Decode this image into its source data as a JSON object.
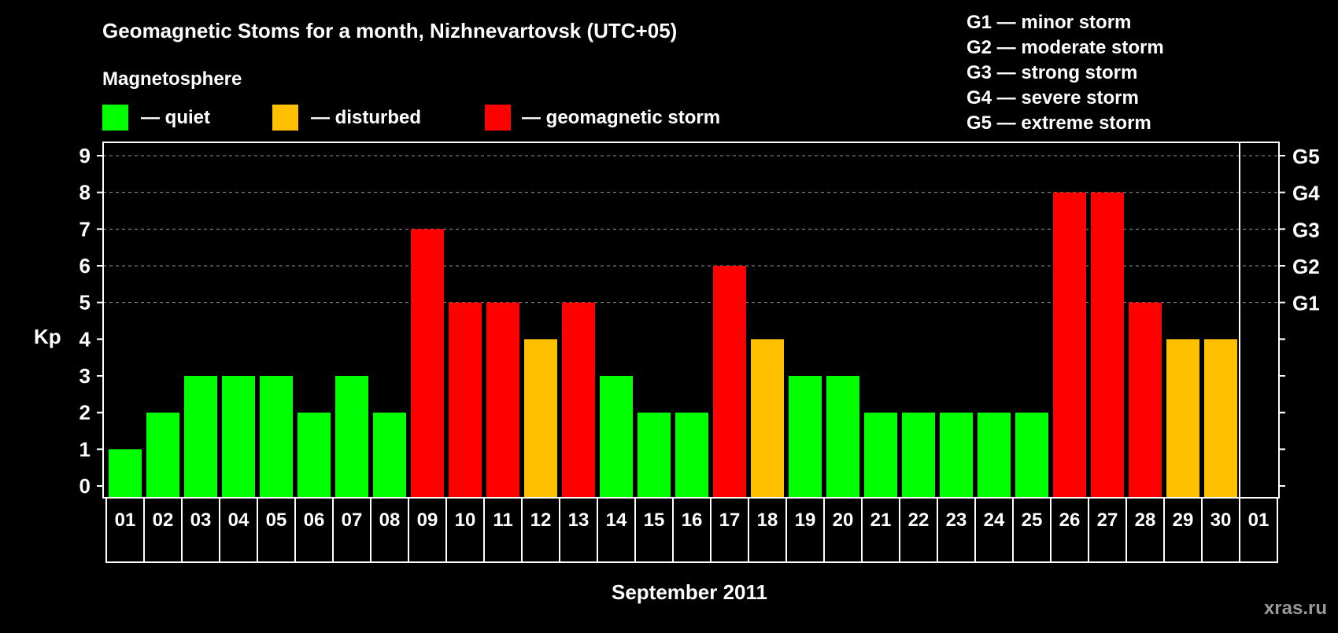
{
  "chart_data": {
    "type": "bar",
    "title": "Geomagnetic Stoms for a month, Nizhnevartovsk (UTC+05)",
    "xlabel": "September 2011",
    "ylabel": "Kp",
    "ylim": [
      0,
      9
    ],
    "yticks": [
      "0",
      "1",
      "2",
      "3",
      "4",
      "5",
      "6",
      "7",
      "8",
      "9"
    ],
    "right_ticks": [
      {
        "kp": 5,
        "label": "G1"
      },
      {
        "kp": 6,
        "label": "G2"
      },
      {
        "kp": 7,
        "label": "G3"
      },
      {
        "kp": 8,
        "label": "G4"
      },
      {
        "kp": 9,
        "label": "G5"
      }
    ],
    "grid": true,
    "categories": [
      "01",
      "02",
      "03",
      "04",
      "05",
      "06",
      "07",
      "08",
      "09",
      "10",
      "11",
      "12",
      "13",
      "14",
      "15",
      "16",
      "17",
      "18",
      "19",
      "20",
      "21",
      "22",
      "23",
      "24",
      "25",
      "26",
      "27",
      "28",
      "29",
      "30",
      "01"
    ],
    "values": [
      1,
      2,
      3,
      3,
      3,
      2,
      3,
      2,
      7,
      5,
      5,
      4,
      5,
      3,
      2,
      2,
      6,
      4,
      3,
      3,
      2,
      2,
      2,
      2,
      2,
      8,
      8,
      5,
      4,
      4,
      null
    ],
    "legend_title": "Magnetosphere",
    "legend": [
      {
        "label": "— quiet",
        "color": "#00ff00"
      },
      {
        "label": "— disturbed",
        "color": "#ffc000"
      },
      {
        "label": "— geomagnetic storm",
        "color": "#ff0000"
      }
    ],
    "scale_legend": [
      "G1 — minor storm",
      "G2 — moderate storm",
      "G3 — strong storm",
      "G4 — severe storm",
      "G5 — extreme storm"
    ]
  },
  "watermark": "xras.ru"
}
